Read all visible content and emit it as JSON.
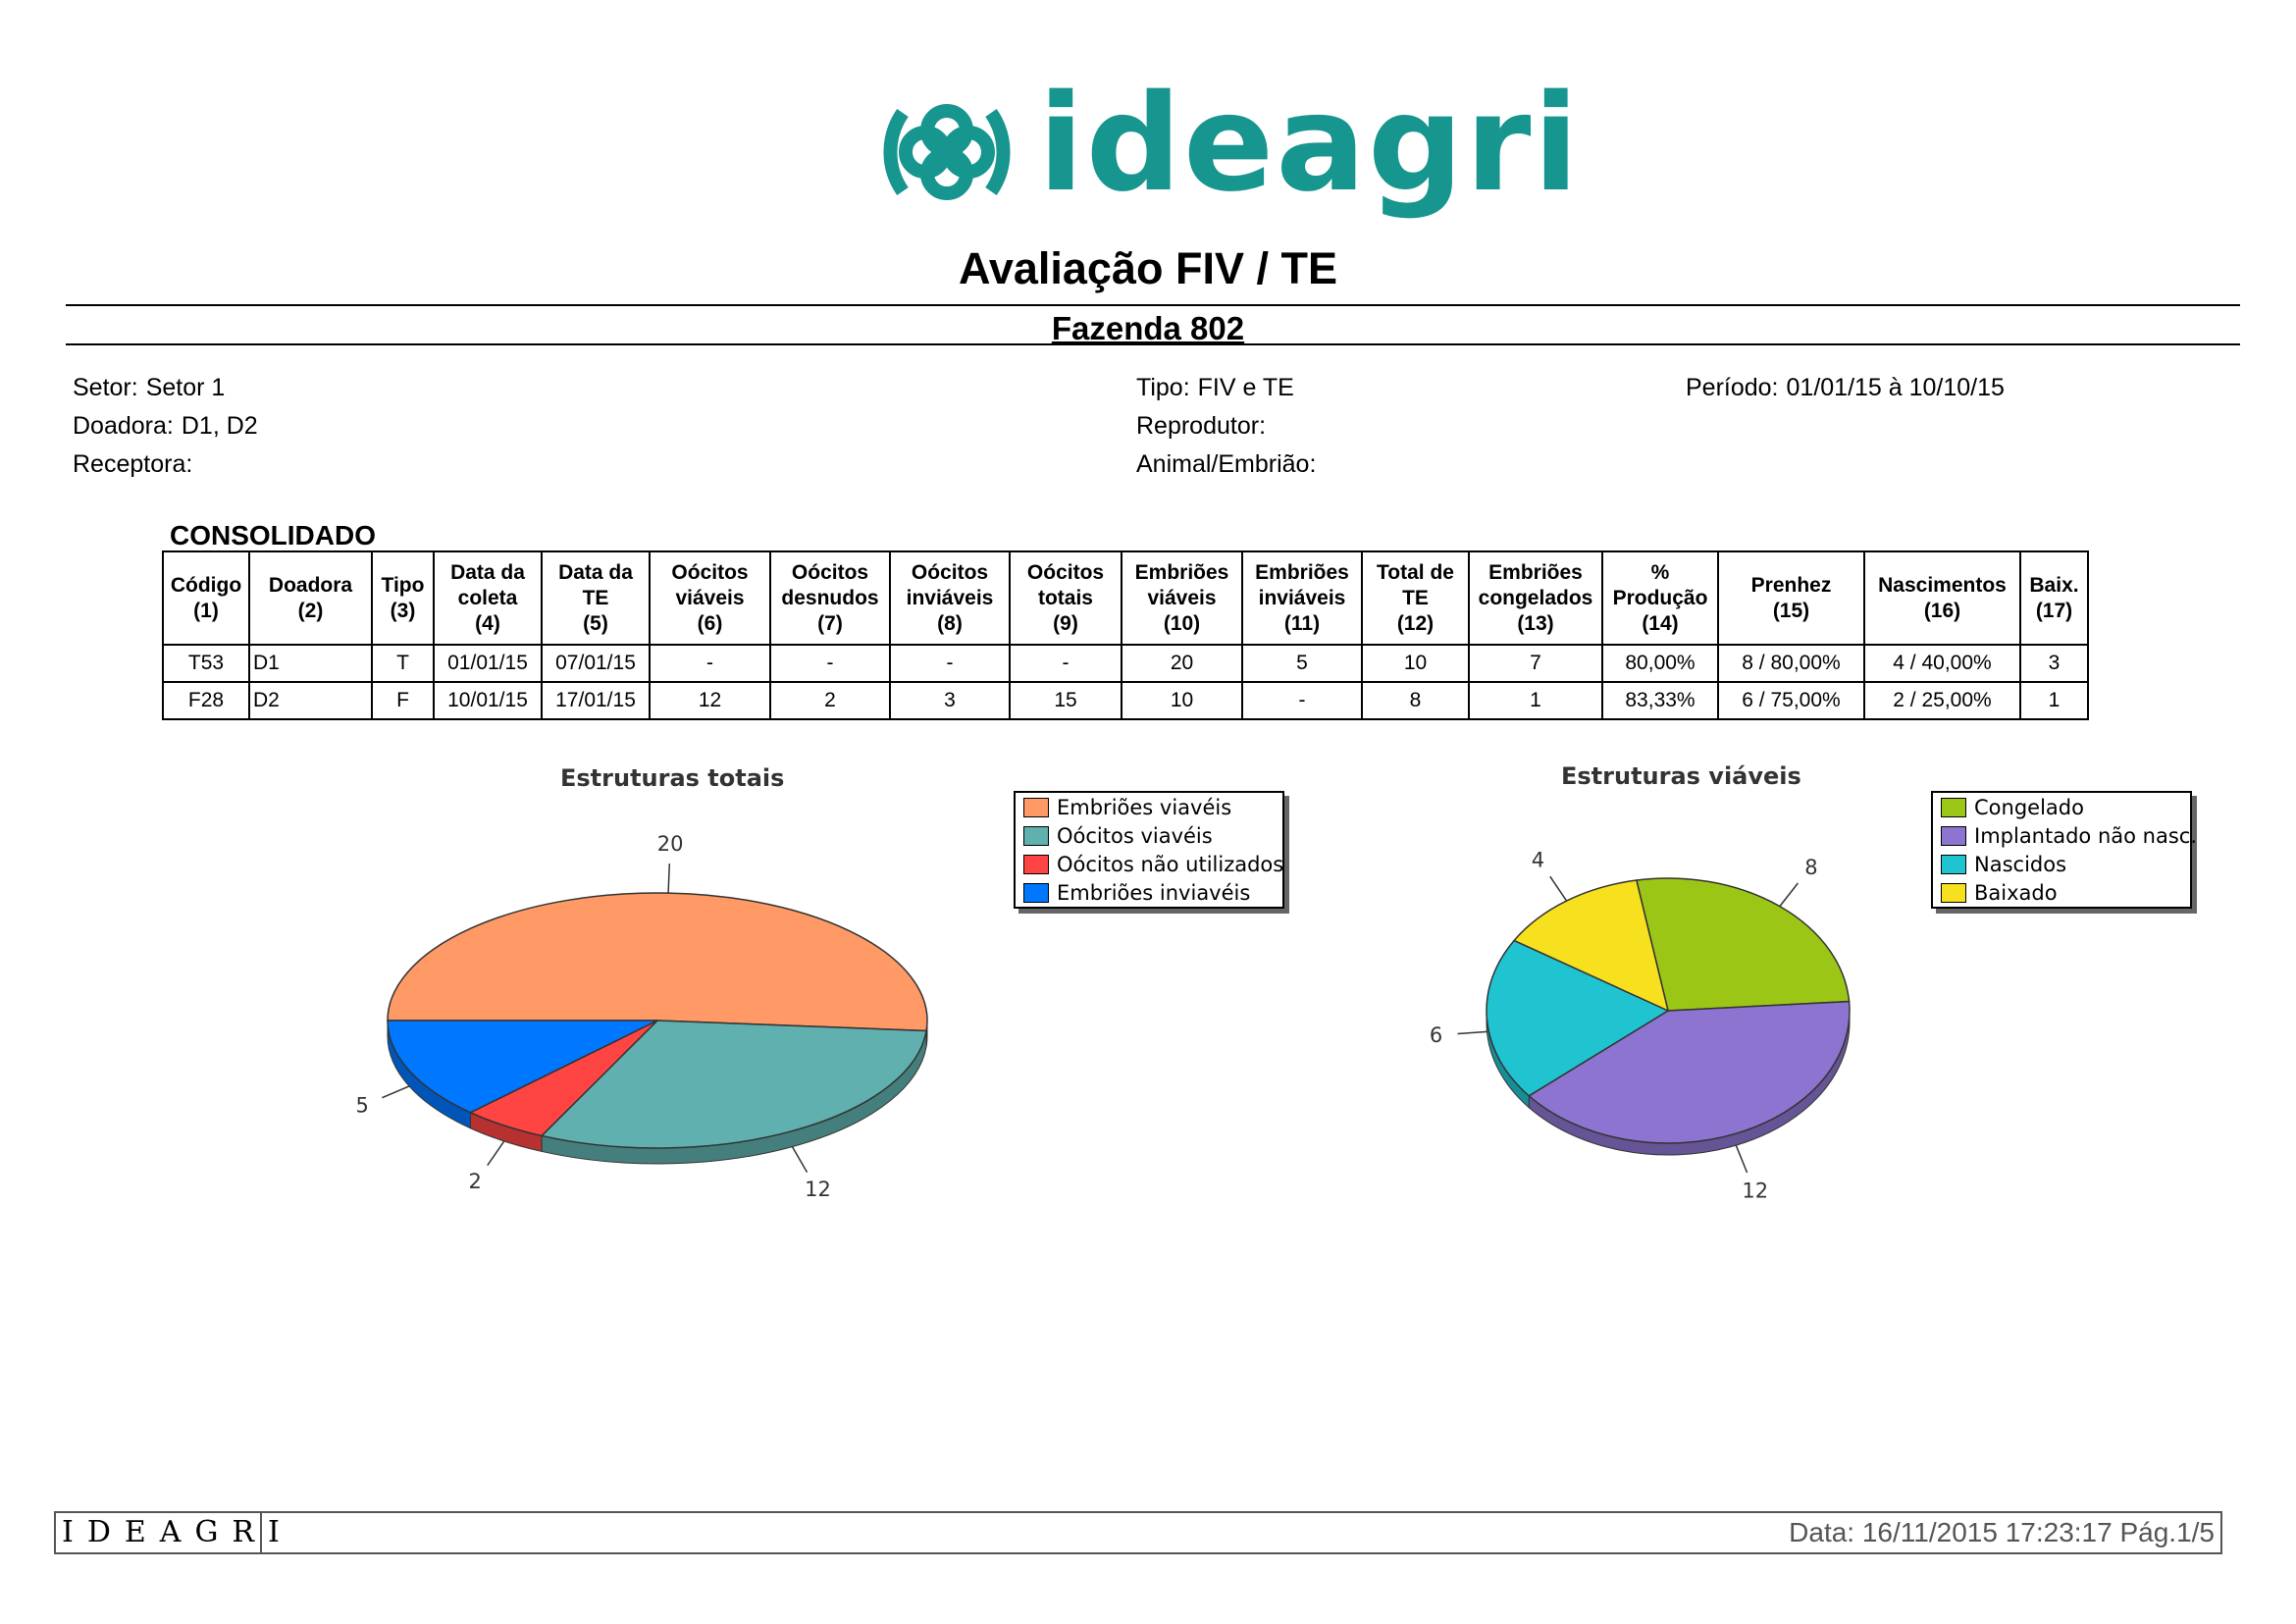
{
  "logo": {
    "wordmark": "ideagri",
    "color": "#17958f"
  },
  "title": "Avaliação FIV / TE",
  "subtitle": "Fazenda 802",
  "filters": {
    "setor": {
      "label": "Setor:",
      "value": "Setor 1"
    },
    "doadora": {
      "label": "Doadora:",
      "value": "D1, D2"
    },
    "receptora": {
      "label": "Receptora:",
      "value": ""
    },
    "tipo": {
      "label": "Tipo:",
      "value": "FIV e TE"
    },
    "reprodutor": {
      "label": "Reprodutor:",
      "value": ""
    },
    "animal": {
      "label": "Animal/Embrião:",
      "value": ""
    },
    "periodo": {
      "label": "Período:",
      "value": "01/01/15 à 10/10/15"
    }
  },
  "section_title": "CONSOLIDADO",
  "table": {
    "headers": [
      [
        "Código",
        "(1)"
      ],
      [
        "Doadora",
        "(2)"
      ],
      [
        "Tipo",
        "(3)"
      ],
      [
        "Data da",
        "coleta",
        "(4)"
      ],
      [
        "Data da",
        "TE",
        "(5)"
      ],
      [
        "Oócitos",
        "viáveis",
        "(6)"
      ],
      [
        "Oócitos",
        "desnudos",
        "(7)"
      ],
      [
        "Oócitos",
        "inviáveis",
        "(8)"
      ],
      [
        "Oócitos",
        "totais",
        "(9)"
      ],
      [
        "Embriões",
        "viáveis",
        "(10)"
      ],
      [
        "Embriões",
        "inviáveis",
        "(11)"
      ],
      [
        "Total de",
        "TE",
        "(12)"
      ],
      [
        "Embriões",
        "congelados",
        "(13)"
      ],
      [
        "%",
        "Produção",
        "(14)"
      ],
      [
        "Prenhez",
        "(15)"
      ],
      [
        "Nascimentos",
        "(16)"
      ],
      [
        "Baix.",
        "(17)"
      ]
    ],
    "rows": [
      [
        "T53",
        "D1",
        "T",
        "01/01/15",
        "07/01/15",
        "-",
        "-",
        "-",
        "-",
        "20",
        "5",
        "10",
        "7",
        "80,00%",
        "8 / 80,00%",
        "4 / 40,00%",
        "3"
      ],
      [
        "F28",
        "D2",
        "F",
        "10/01/15",
        "17/01/15",
        "12",
        "2",
        "3",
        "15",
        "10",
        "-",
        "8",
        "1",
        "83,33%",
        "6 / 75,00%",
        "2 / 25,00%",
        "1"
      ]
    ]
  },
  "chart_data": [
    {
      "type": "pie",
      "title": "Estruturas totais",
      "legend_position": "right",
      "series": [
        {
          "name": "Embriões viavéis",
          "value": 20,
          "color": "#ff9966"
        },
        {
          "name": "Oócitos viavéis",
          "value": 12,
          "color": "#5fb0ae"
        },
        {
          "name": "Oócitos não utilizados",
          "value": 2,
          "color": "#ff4444"
        },
        {
          "name": "Embriões inviavéis",
          "value": 5,
          "color": "#0077ff"
        }
      ]
    },
    {
      "type": "pie",
      "title": "Estruturas viáveis",
      "legend_position": "right",
      "series": [
        {
          "name": "Congelado",
          "value": 8,
          "color": "#9cc616"
        },
        {
          "name": "Implantado não nasc.",
          "value": 12,
          "color": "#8c74d0"
        },
        {
          "name": "Nascidos",
          "value": 6,
          "color": "#20c4d0"
        },
        {
          "name": "Baixado",
          "value": 4,
          "color": "#f7e01e"
        }
      ]
    }
  ],
  "footer": {
    "brand": "IDEAGRI",
    "info": "Data: 16/11/2015 17:23:17 Pág.1/5"
  }
}
